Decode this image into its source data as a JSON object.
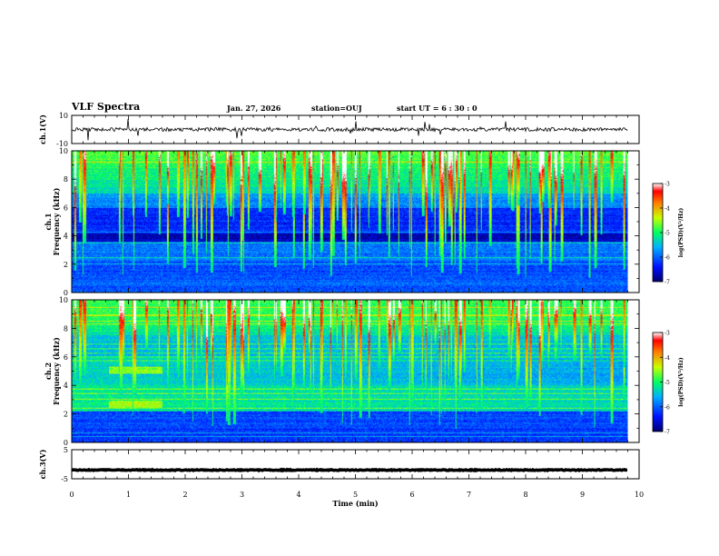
{
  "header": {
    "title": "VLF Spectra",
    "date": "Jan. 27, 2026",
    "station": "station=OUJ",
    "start_ut": "start UT =  6 : 30 : 0"
  },
  "chart_data": {
    "type": "heatmap",
    "x": {
      "label": "Time (min)",
      "range": [
        0,
        10
      ],
      "ticks": [
        "0",
        "1",
        "2",
        "3",
        "4",
        "5",
        "6",
        "7",
        "8",
        "9",
        "10"
      ],
      "data_extent": [
        0,
        9.8
      ]
    },
    "panels": [
      {
        "id": "ch1-waveform",
        "type": "line",
        "ylabel": "ch.1(V)",
        "ylim": [
          -10,
          10
        ],
        "yticks": [
          "10",
          "-10"
        ],
        "baseline": 0
      },
      {
        "id": "ch1-spectrogram",
        "type": "heatmap",
        "ylabel": "ch.1 Frequency (kHz)",
        "ylim": [
          0,
          10
        ],
        "yticks": [
          "0",
          "2",
          "4",
          "6",
          "8",
          "10"
        ],
        "colorbar": {
          "label": "log(PSD)(V²/Hz)",
          "range": [
            -7,
            -3
          ],
          "ticks": [
            "-3",
            "-4",
            "-5",
            "-6",
            "-7"
          ]
        }
      },
      {
        "id": "ch2-spectrogram",
        "type": "heatmap",
        "ylabel": "ch.2 Frequency (kHz)",
        "ylim": [
          0,
          10
        ],
        "yticks": [
          "0",
          "2",
          "4",
          "6",
          "8",
          "10"
        ],
        "colorbar": {
          "label": "log(PSD)(V²/Hz)",
          "range": [
            -7,
            -3
          ],
          "ticks": [
            "-3",
            "-4",
            "-5",
            "-6",
            "-7"
          ]
        }
      },
      {
        "id": "ch3-waveform",
        "type": "line",
        "ylabel": "ch.3(V)",
        "ylim": [
          -5,
          5
        ],
        "yticks": [
          "5",
          "-5"
        ],
        "baseline": -2
      }
    ]
  }
}
